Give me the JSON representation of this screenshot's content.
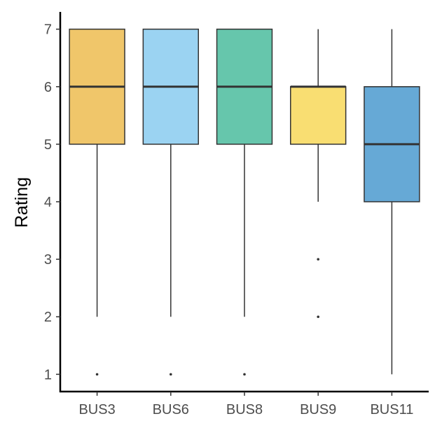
{
  "chart_data": {
    "type": "boxplot",
    "title": "",
    "xlabel": "",
    "ylabel": "Rating",
    "ylim": [
      0.7,
      7.3
    ],
    "yticks": [
      1,
      2,
      3,
      4,
      5,
      6,
      7
    ],
    "grid": false,
    "legend": "none",
    "categories": [
      "BUS3",
      "BUS6",
      "BUS8",
      "BUS9",
      "BUS11"
    ],
    "boxes": [
      {
        "category": "BUS3",
        "whisker_low": 2,
        "q1": 5,
        "median": 6,
        "q3": 7,
        "whisker_high": 7,
        "outliers": [
          1
        ],
        "color": "#F0C66A"
      },
      {
        "category": "BUS6",
        "whisker_low": 2,
        "q1": 5,
        "median": 6,
        "q3": 7,
        "whisker_high": 7,
        "outliers": [
          1
        ],
        "color": "#9BD3F2"
      },
      {
        "category": "BUS8",
        "whisker_low": 2,
        "q1": 5,
        "median": 6,
        "q3": 7,
        "whisker_high": 7,
        "outliers": [
          1
        ],
        "color": "#66C6AC"
      },
      {
        "category": "BUS9",
        "whisker_low": 4,
        "q1": 5,
        "median": 6,
        "q3": 6,
        "whisker_high": 7,
        "outliers": [
          2,
          3
        ],
        "color": "#F9DE72"
      },
      {
        "category": "BUS11",
        "whisker_low": 1,
        "q1": 4,
        "median": 5,
        "q3": 6,
        "whisker_high": 7,
        "outliers": [],
        "color": "#66A9D6"
      }
    ]
  }
}
